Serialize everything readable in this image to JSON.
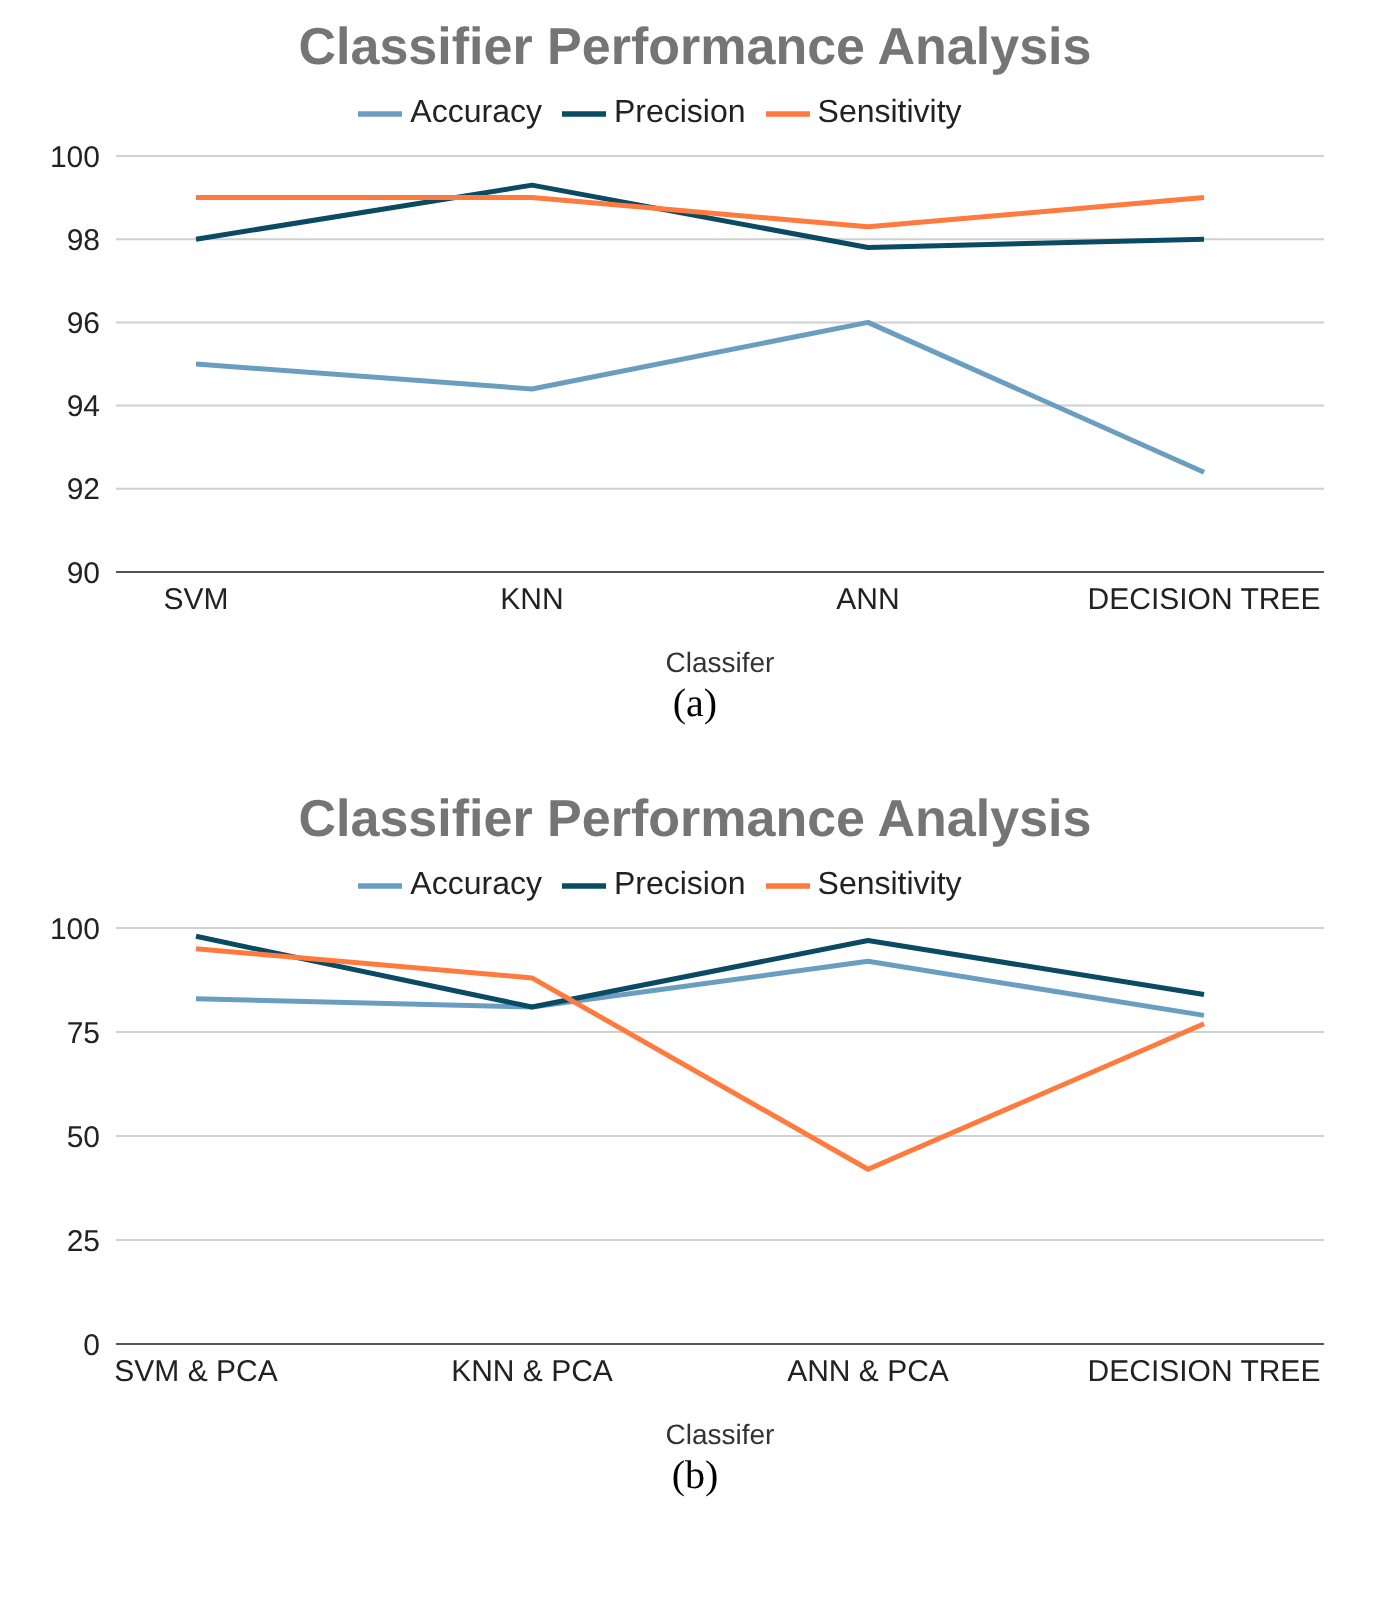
{
  "chart_data": [
    {
      "type": "line",
      "title": "Classifier Performance Analysis",
      "xlabel": "Classifer",
      "categories": [
        "SVM",
        "KNN",
        "ANN",
        "DECISION TREE"
      ],
      "series": [
        {
          "name": "Accuracy",
          "color": "#6a9ec0",
          "values": [
            95,
            94.4,
            96,
            92.4
          ]
        },
        {
          "name": "Precision",
          "color": "#0b4a63",
          "values": [
            98,
            99.3,
            97.8,
            98
          ]
        },
        {
          "name": "Sensitivity",
          "color": "#ff7a3d",
          "values": [
            99,
            99,
            98.3,
            99
          ]
        }
      ],
      "ylim": [
        90,
        100
      ],
      "yticks": [
        90,
        92,
        94,
        96,
        98,
        100
      ],
      "grid": "y",
      "legend": "top",
      "marker": "none",
      "line_style": "solid",
      "annotations": [
        "(a)"
      ]
    },
    {
      "type": "line",
      "title": "Classifier Performance Analysis",
      "xlabel": "Classifer",
      "categories": [
        "SVM & PCA",
        "KNN & PCA",
        "ANN & PCA",
        "DECISION TREE"
      ],
      "series": [
        {
          "name": "Accuracy",
          "color": "#6a9ec0",
          "values": [
            83,
            81,
            92,
            79
          ]
        },
        {
          "name": "Precision",
          "color": "#0b4a63",
          "values": [
            98,
            81,
            97,
            84
          ]
        },
        {
          "name": "Sensitivity",
          "color": "#ff7a3d",
          "values": [
            95,
            88,
            42,
            77
          ]
        }
      ],
      "ylim": [
        0,
        100
      ],
      "yticks": [
        0,
        25,
        50,
        75,
        100
      ],
      "grid": "y",
      "legend": "top",
      "marker": "none",
      "line_style": "solid",
      "annotations": [
        "(b)"
      ]
    }
  ]
}
